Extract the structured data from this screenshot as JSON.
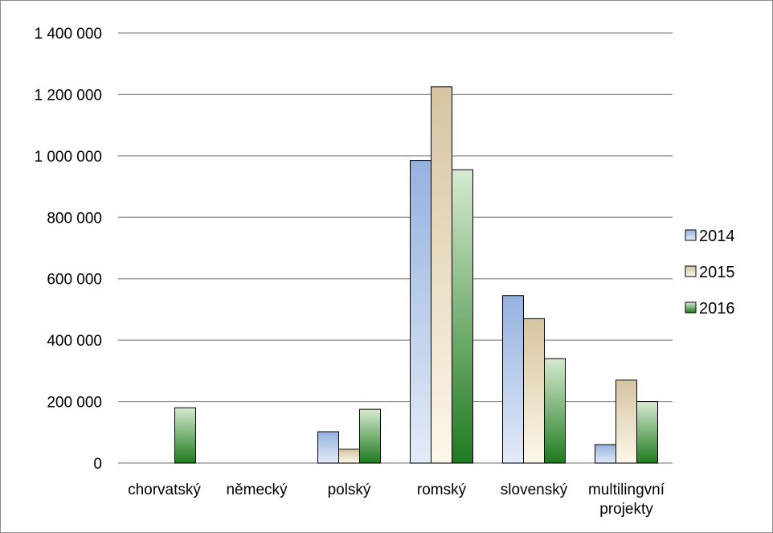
{
  "chart_data": {
    "type": "bar",
    "categories": [
      "chorvatský",
      "německý",
      "polský",
      "romský",
      "slovenský",
      "multilingvní projekty"
    ],
    "series": [
      {
        "name": "2014",
        "values": [
          0,
          0,
          102000,
          985000,
          545000,
          60000
        ]
      },
      {
        "name": "2015",
        "values": [
          0,
          0,
          45000,
          1225000,
          470000,
          270000
        ]
      },
      {
        "name": "2016",
        "values": [
          180000,
          0,
          175000,
          955000,
          340000,
          200000
        ]
      }
    ],
    "ylim": [
      0,
      1400000
    ],
    "yticks": [
      0,
      200000,
      400000,
      600000,
      800000,
      1000000,
      1200000,
      1400000
    ],
    "ytick_labels": [
      "0",
      "200 000",
      "400 000",
      "600 000",
      "800 000",
      "1 000 000",
      "1 200 000",
      "1 400 000"
    ],
    "grid": true,
    "legend_position": "right",
    "title": "",
    "xlabel": "",
    "ylabel": ""
  },
  "colors": {
    "2014": {
      "light": "#e3ebf8",
      "dark": "#95b2e0"
    },
    "2015": {
      "light": "#fdf8ea",
      "dark": "#d6c4a0"
    },
    "2016": {
      "light": "#d6ead0",
      "dark": "#1f7a1f"
    },
    "gridline": "#8c8c8c",
    "bar_outline": "#000000"
  }
}
